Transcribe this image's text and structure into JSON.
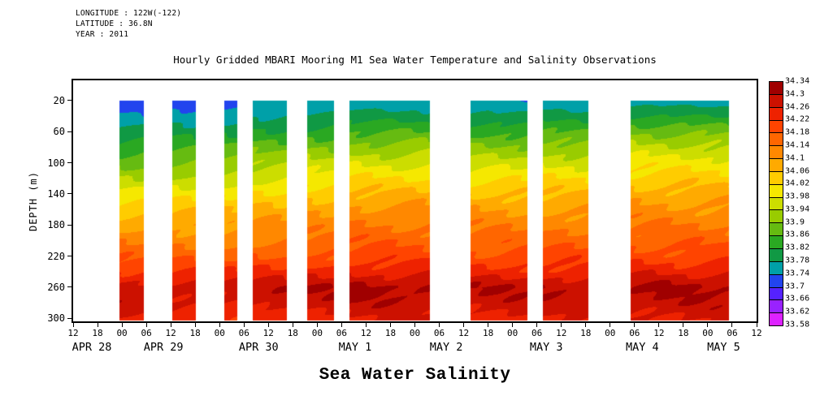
{
  "header": {
    "longitude": "LONGITUDE : 122W(-122)",
    "latitude": "LATITUDE : 36.8N",
    "year": "YEAR : 2011"
  },
  "chart_data": {
    "type": "heatmap",
    "title": "Hourly Gridded MBARI Mooring M1 Sea Water Temperature and Salinity Observations",
    "xlabel": "Sea Water Salinity",
    "ylabel": "DEPTH (m)",
    "x_domain_hours": [
      0,
      168
    ],
    "x_tick_step_hours": 6,
    "x_tick_labels": [
      "12",
      "18",
      "00",
      "06",
      "12",
      "18",
      "00",
      "06",
      "12",
      "18",
      "00",
      "06",
      "12",
      "18",
      "00",
      "06",
      "12",
      "18",
      "00",
      "06",
      "12",
      "18",
      "00",
      "06",
      "12",
      "18",
      "00",
      "06",
      "12"
    ],
    "date_labels": [
      {
        "label": "APR 28",
        "hour": 4.6
      },
      {
        "label": "APR 29",
        "hour": 22.2
      },
      {
        "label": "APR 30",
        "hour": 45.6
      },
      {
        "label": "MAY 1",
        "hour": 69.3
      },
      {
        "label": "MAY 2",
        "hour": 91.7
      },
      {
        "label": "MAY 3",
        "hour": 116.3
      },
      {
        "label": "MAY 4",
        "hour": 139.9
      },
      {
        "label": "MAY 5",
        "hour": 159.9
      }
    ],
    "y_domain_depth_m": [
      -6,
      304
    ],
    "y_ticks_m": [
      20,
      60,
      100,
      140,
      180,
      220,
      260,
      300
    ],
    "band_top_depth_m": 20,
    "band_bottom_depth_m": 302,
    "colorbar": {
      "levels_asc": [
        33.58,
        33.62,
        33.66,
        33.7,
        33.74,
        33.78,
        33.82,
        33.86,
        33.9,
        33.94,
        33.98,
        34.02,
        34.06,
        34.1,
        34.14,
        34.18,
        34.22,
        34.26,
        34.3,
        34.34
      ],
      "segment_colors_asc": [
        "#dd22ff",
        "#9922ff",
        "#5522ff",
        "#2244ee",
        "#00a0a8",
        "#109944",
        "#2aa822",
        "#66bb11",
        "#99cc00",
        "#ccdd00",
        "#f5e800",
        "#ffcc00",
        "#ffaa00",
        "#ff8800",
        "#ff6600",
        "#ff4400",
        "#ee2200",
        "#cc1100",
        "#a00000"
      ]
    },
    "depths_m": [
      20,
      40,
      60,
      80,
      100,
      120,
      140,
      160,
      180,
      200,
      220,
      240,
      260,
      280,
      300
    ],
    "bands": [
      {
        "start_hour": 11.4,
        "end_hour": 17.2,
        "salinity": [
          33.71,
          33.75,
          33.79,
          33.84,
          33.89,
          33.94,
          33.99,
          34.04,
          34.09,
          34.13,
          34.17,
          34.22,
          34.29,
          34.28,
          34.24
        ]
      },
      {
        "start_hour": 24.4,
        "end_hour": 30.0,
        "salinity": [
          33.72,
          33.76,
          33.8,
          33.85,
          33.9,
          33.95,
          34.0,
          34.05,
          34.09,
          34.13,
          34.17,
          34.22,
          34.29,
          34.27,
          34.23
        ]
      },
      {
        "start_hour": 37.2,
        "end_hour": 40.2,
        "salinity": [
          33.72,
          33.77,
          33.81,
          33.86,
          33.91,
          33.96,
          34.01,
          34.05,
          34.09,
          34.13,
          34.17,
          34.22,
          34.28,
          34.27,
          34.23
        ]
      },
      {
        "start_hour": 44.2,
        "end_hour": 52.4,
        "salinity": [
          33.74,
          33.78,
          33.83,
          33.88,
          33.93,
          33.98,
          34.03,
          34.07,
          34.11,
          34.14,
          34.18,
          34.23,
          34.29,
          34.28,
          34.24
        ]
      },
      {
        "start_hour": 57.5,
        "end_hour": 63.9,
        "salinity": [
          33.74,
          33.79,
          33.84,
          33.9,
          33.95,
          34.0,
          34.05,
          34.09,
          34.12,
          34.15,
          34.19,
          34.24,
          34.3,
          34.28,
          34.25
        ]
      },
      {
        "start_hour": 67.9,
        "end_hour": 87.5,
        "salinity": [
          33.75,
          33.8,
          33.86,
          33.92,
          33.97,
          34.02,
          34.07,
          34.11,
          34.14,
          34.17,
          34.2,
          34.25,
          34.31,
          34.29,
          34.26
        ]
      },
      {
        "start_hour": 97.7,
        "end_hour": 111.5,
        "salinity": [
          33.74,
          33.79,
          33.85,
          33.91,
          33.96,
          34.01,
          34.06,
          34.1,
          34.13,
          34.16,
          34.19,
          34.24,
          34.3,
          34.28,
          34.25
        ]
      },
      {
        "start_hour": 115.5,
        "end_hour": 126.5,
        "salinity": [
          33.75,
          33.8,
          33.86,
          33.92,
          33.97,
          34.02,
          34.06,
          34.1,
          34.13,
          34.16,
          34.2,
          34.24,
          34.3,
          34.28,
          34.25
        ]
      },
      {
        "start_hour": 137.1,
        "end_hour": 161.0,
        "salinity": [
          33.76,
          33.82,
          33.89,
          33.95,
          34.0,
          34.04,
          34.08,
          34.11,
          34.14,
          34.17,
          34.2,
          34.25,
          34.31,
          34.29,
          34.26
        ]
      }
    ]
  }
}
